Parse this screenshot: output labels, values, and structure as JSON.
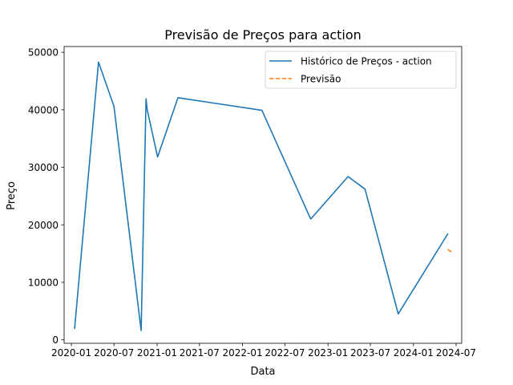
{
  "chart_data": {
    "type": "line",
    "title": "Previsão de Preços para action",
    "xlabel": "Data",
    "ylabel": "Preço",
    "x_type": "date",
    "xlim": [
      "2019-12-01",
      "2024-07-25"
    ],
    "ylim": [
      -600,
      51000
    ],
    "x_ticks": [
      "2020-01-01",
      "2020-07-01",
      "2021-01-01",
      "2021-07-01",
      "2022-01-01",
      "2022-07-01",
      "2023-01-01",
      "2023-07-01",
      "2024-01-01",
      "2024-07-01"
    ],
    "x_tick_labels": [
      "2020-01",
      "2020-07",
      "2021-01",
      "2021-07",
      "2022-01",
      "2022-07",
      "2023-01",
      "2023-07",
      "2024-01",
      "2024-07"
    ],
    "y_ticks": [
      0,
      10000,
      20000,
      30000,
      40000,
      50000
    ],
    "y_tick_labels": [
      "0",
      "10000",
      "20000",
      "30000",
      "40000",
      "50000"
    ],
    "grid": false,
    "legend_position": "top-right",
    "series": [
      {
        "name": "Histórico de Preços - action",
        "color": "#1f77b4",
        "style": "solid",
        "points": [
          {
            "x": "2020-01-15",
            "y": 2000
          },
          {
            "x": "2020-04-26",
            "y": 48300
          },
          {
            "x": "2020-07-01",
            "y": 40600
          },
          {
            "x": "2020-10-25",
            "y": 1600
          },
          {
            "x": "2020-11-15",
            "y": 41900
          },
          {
            "x": "2020-11-20",
            "y": 40000
          },
          {
            "x": "2021-01-03",
            "y": 31800
          },
          {
            "x": "2021-03-31",
            "y": 42100
          },
          {
            "x": "2022-03-25",
            "y": 39900
          },
          {
            "x": "2022-10-19",
            "y": 21000
          },
          {
            "x": "2023-03-28",
            "y": 28400
          },
          {
            "x": "2023-06-08",
            "y": 26200
          },
          {
            "x": "2023-10-28",
            "y": 4500
          },
          {
            "x": "2024-05-26",
            "y": 18400
          }
        ]
      },
      {
        "name": "Previsão",
        "color": "#ff7f0e",
        "style": "dashed",
        "points": [
          {
            "x": "2024-05-26",
            "y": 15700
          },
          {
            "x": "2024-06-16",
            "y": 15200
          }
        ]
      }
    ]
  }
}
